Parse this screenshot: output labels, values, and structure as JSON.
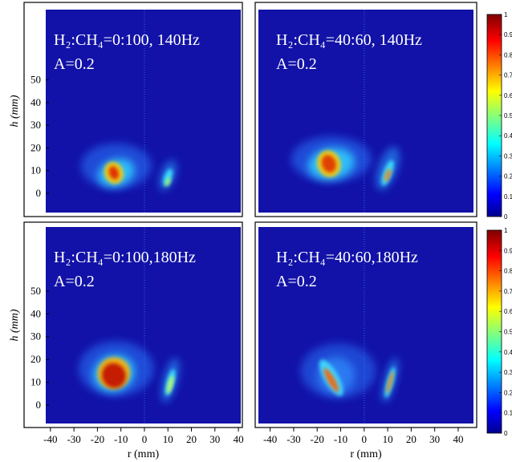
{
  "chart_data": [
    {
      "type": "heatmap",
      "annotation": [
        "H₂:CH₄=0:100, 140Hz",
        "A=0.2"
      ],
      "ylabel": "h (mm)",
      "xlim": [
        -42,
        41
      ],
      "ylim": [
        -8.5,
        81
      ],
      "yticks": [
        0,
        10,
        20,
        30,
        40,
        50
      ]
    },
    {
      "type": "heatmap",
      "annotation": [
        "H₂:CH₄=40:60, 140Hz",
        "A=0.2"
      ],
      "xlim": [
        -45,
        46.5
      ],
      "ylim": [
        -8.5,
        81
      ],
      "colorbar": {
        "lim": [
          0,
          1
        ],
        "ticks": [
          0,
          0.1,
          0.2,
          0.3,
          0.4,
          0.5,
          0.6,
          0.7,
          0.8,
          0.9,
          1
        ]
      }
    },
    {
      "type": "heatmap",
      "annotation": [
        "H₂:CH₄=0:100,180Hz",
        "A=0.2"
      ],
      "ylabel": "h (mm)",
      "xlabel": "r (mm)",
      "xlim": [
        -42,
        41
      ],
      "ylim": [
        -8,
        78
      ],
      "yticks": [
        0,
        10,
        20,
        30,
        40,
        50
      ],
      "xticks": [
        -40,
        -30,
        -20,
        -10,
        0,
        10,
        20,
        30,
        40
      ]
    },
    {
      "type": "heatmap",
      "annotation": [
        "H₂:CH₄=40:60,180Hz",
        "A=0.2"
      ],
      "xlabel": "r (mm)",
      "xlim": [
        -45,
        46.5
      ],
      "ylim": [
        -8,
        78
      ],
      "xticks": [
        -40,
        -30,
        -20,
        -10,
        0,
        10,
        20,
        30,
        40
      ],
      "colorbar": {
        "lim": [
          0,
          1
        ],
        "ticks": [
          0,
          0.1,
          0.2,
          0.3,
          0.4,
          0.5,
          0.6,
          0.7,
          0.8,
          0.9,
          1
        ]
      }
    }
  ]
}
